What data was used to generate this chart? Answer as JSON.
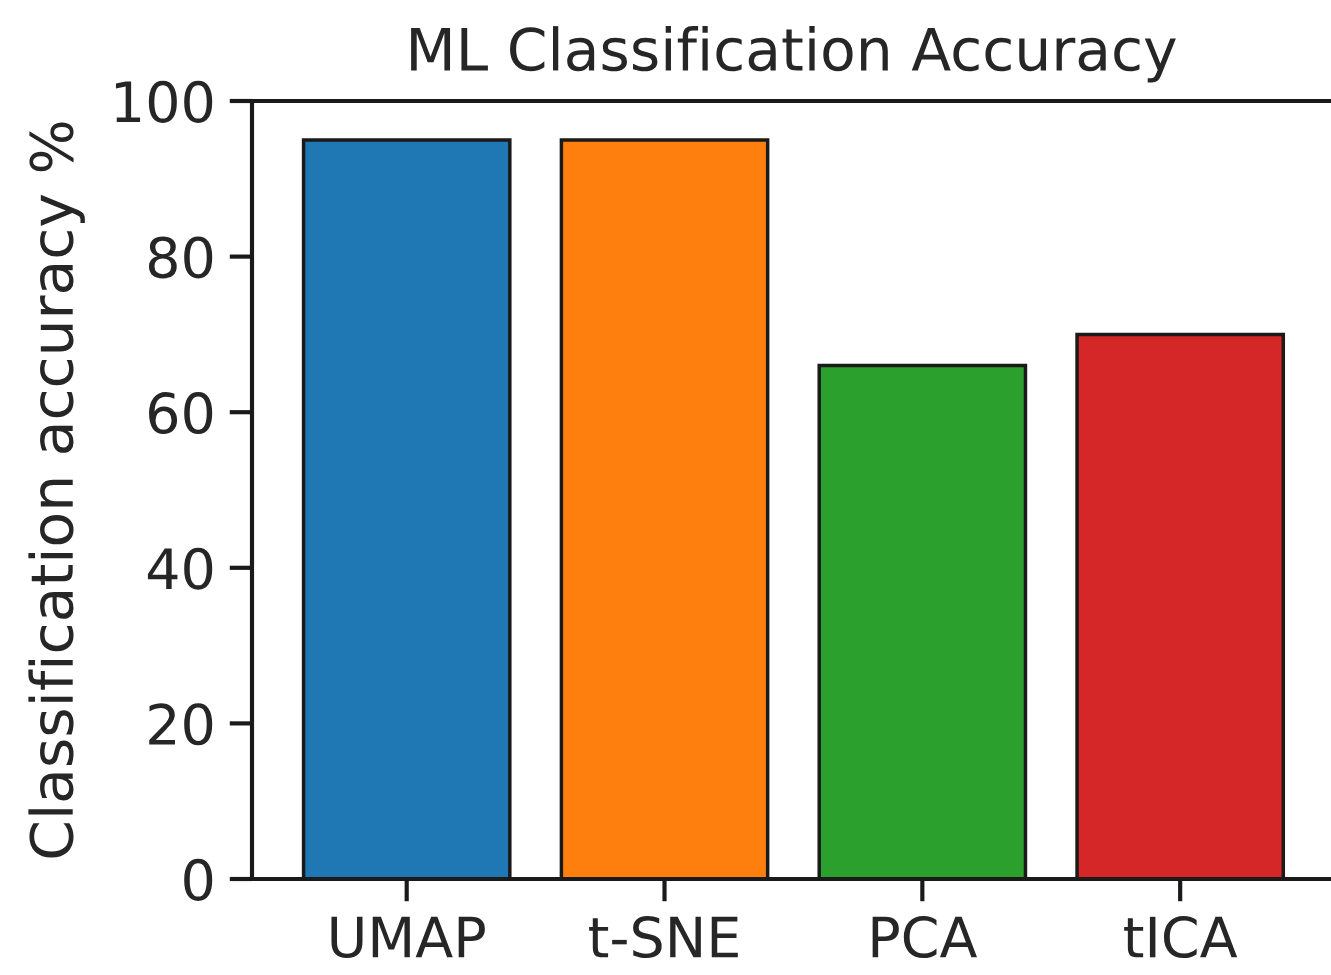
{
  "chart_data": {
    "type": "bar",
    "title": "ML Classification Accuracy",
    "ylabel": "Classification accuracy %",
    "categories": [
      "UMAP",
      "t-SNE",
      "PCA",
      "tICA"
    ],
    "values": [
      95,
      95,
      66,
      70
    ],
    "colors": [
      "#1f77b4",
      "#ff7f0e",
      "#2ca02c",
      "#d62728"
    ],
    "ylim": [
      0,
      100
    ],
    "yticks": [
      0,
      20,
      40,
      60,
      80,
      100
    ],
    "grid": false,
    "legend": false
  }
}
